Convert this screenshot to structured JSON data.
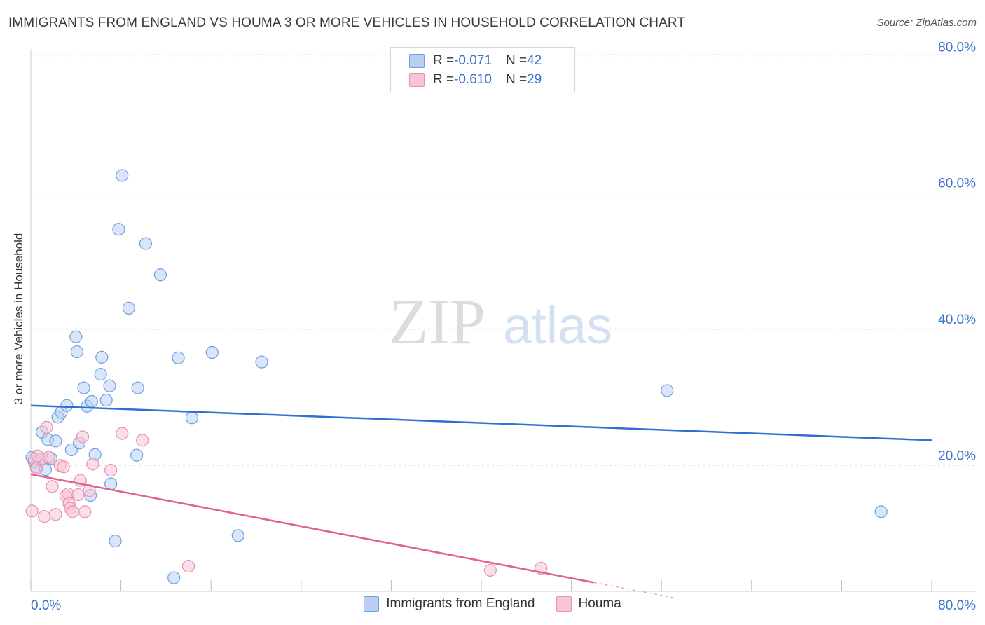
{
  "title": "IMMIGRANTS FROM ENGLAND VS HOUMA 3 OR MORE VEHICLES IN HOUSEHOLD CORRELATION CHART",
  "source": "Source: ZipAtlas.com",
  "watermark": {
    "zip": "ZIP",
    "atlas": "atlas"
  },
  "colors": {
    "blue_fill": "#b9d0f3",
    "blue_stroke": "#6f9fe0",
    "blue_line": "#2f6fcf",
    "pink_fill": "#f7c5d6",
    "pink_stroke": "#ea8fb0",
    "pink_line": "#e0608e",
    "tick": "#3a74cc"
  },
  "stats": [
    {
      "r_label": "R = ",
      "r_value": "-0.071",
      "n_label": "N = ",
      "n_value": "42"
    },
    {
      "r_label": "R = ",
      "r_value": "-0.610",
      "n_label": "N = ",
      "n_value": "29"
    }
  ],
  "chart_data": {
    "type": "scatter",
    "title": "IMMIGRANTS FROM ENGLAND VS HOUMA 3 OR MORE VEHICLES IN HOUSEHOLD CORRELATION CHART",
    "xlabel": "",
    "ylabel": "3 or more Vehicles in Household",
    "xlim": [
      0,
      80
    ],
    "ylim": [
      1.5,
      82
    ],
    "x_tick_labels": [
      "0.0%",
      "80.0%"
    ],
    "y_ticks": [
      20,
      40,
      60,
      80
    ],
    "y_tick_labels": [
      "20.0%",
      "40.0%",
      "60.0%",
      "80.0%"
    ],
    "grid": true,
    "legend_position": "bottom-center",
    "series": [
      {
        "name": "Immigrants from England",
        "r": -0.071,
        "n": 42,
        "trend": {
          "x": [
            0,
            80
          ],
          "y": [
            28.8,
            23.7
          ]
        },
        "points": [
          [
            0.1,
            21.2
          ],
          [
            0.3,
            20.5
          ],
          [
            0.5,
            19.8
          ],
          [
            0.8,
            20.8
          ],
          [
            1.0,
            24.9
          ],
          [
            1.3,
            19.4
          ],
          [
            1.5,
            23.8
          ],
          [
            1.8,
            21.0
          ],
          [
            2.2,
            23.6
          ],
          [
            2.4,
            27.1
          ],
          [
            2.7,
            27.8
          ],
          [
            3.2,
            28.8
          ],
          [
            3.6,
            22.3
          ],
          [
            4.0,
            38.9
          ],
          [
            4.1,
            36.7
          ],
          [
            4.3,
            23.3
          ],
          [
            4.7,
            31.4
          ],
          [
            5.0,
            28.7
          ],
          [
            5.4,
            29.4
          ],
          [
            5.7,
            21.6
          ],
          [
            6.2,
            33.4
          ],
          [
            6.3,
            35.9
          ],
          [
            6.7,
            29.6
          ],
          [
            7.0,
            31.7
          ],
          [
            7.5,
            8.9
          ],
          [
            7.8,
            54.7
          ],
          [
            8.1,
            62.6
          ],
          [
            8.7,
            43.1
          ],
          [
            9.4,
            21.5
          ],
          [
            9.5,
            31.4
          ],
          [
            10.2,
            52.6
          ],
          [
            11.5,
            48.0
          ],
          [
            12.7,
            3.5
          ],
          [
            13.1,
            35.8
          ],
          [
            14.3,
            27.0
          ],
          [
            16.1,
            36.6
          ],
          [
            18.4,
            9.7
          ],
          [
            20.5,
            35.2
          ],
          [
            56.5,
            31.0
          ],
          [
            75.5,
            13.2
          ],
          [
            5.3,
            15.6
          ],
          [
            7.1,
            17.3
          ]
        ]
      },
      {
        "name": "Houma",
        "r": -0.61,
        "n": 29,
        "trend": {
          "x": [
            0,
            50
          ],
          "y": [
            18.7,
            2.8
          ]
        },
        "trend_dashed": {
          "x": [
            50,
            57
          ],
          "y": [
            2.8,
            0.6
          ]
        },
        "points": [
          [
            0.1,
            13.3
          ],
          [
            0.3,
            20.9
          ],
          [
            0.5,
            19.6
          ],
          [
            1.0,
            21.0
          ],
          [
            1.2,
            12.5
          ],
          [
            1.4,
            25.6
          ],
          [
            1.6,
            21.2
          ],
          [
            1.9,
            16.9
          ],
          [
            2.2,
            12.8
          ],
          [
            2.6,
            20.0
          ],
          [
            2.9,
            19.8
          ],
          [
            3.1,
            15.5
          ],
          [
            3.3,
            15.8
          ],
          [
            3.4,
            14.4
          ],
          [
            3.5,
            13.7
          ],
          [
            3.7,
            13.2
          ],
          [
            4.2,
            15.7
          ],
          [
            4.4,
            17.8
          ],
          [
            4.6,
            24.2
          ],
          [
            4.8,
            13.2
          ],
          [
            5.2,
            16.3
          ],
          [
            5.5,
            20.2
          ],
          [
            7.1,
            19.3
          ],
          [
            8.1,
            24.7
          ],
          [
            9.9,
            23.7
          ],
          [
            14.0,
            5.2
          ],
          [
            40.8,
            4.6
          ],
          [
            45.3,
            4.9
          ],
          [
            0.6,
            21.4
          ]
        ]
      }
    ]
  }
}
